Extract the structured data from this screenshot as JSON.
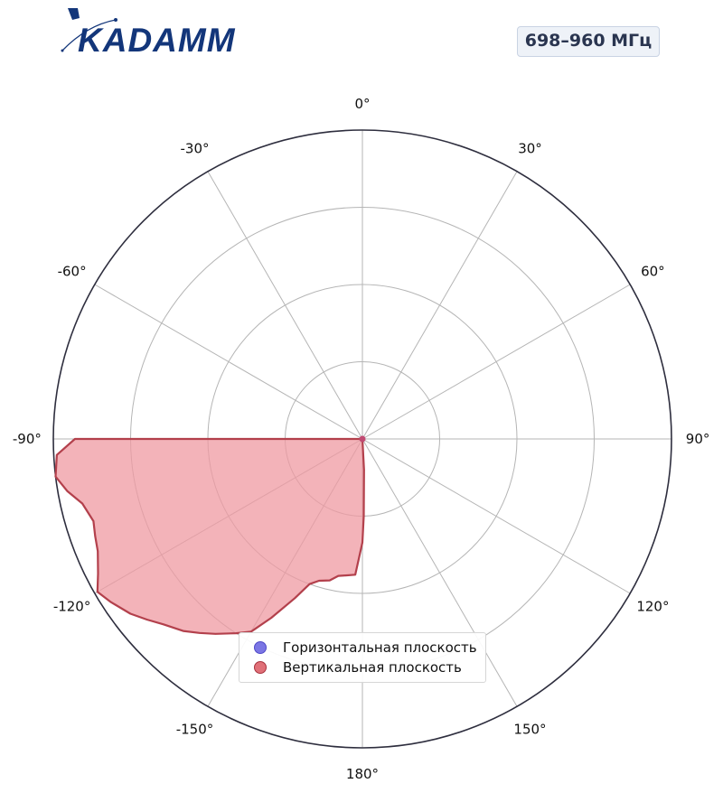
{
  "logo": {
    "text": "KADAMM",
    "color": "#13367a"
  },
  "band_label": "698–960 МГц",
  "chart_data": {
    "type": "polar",
    "angle_direction": "clockwise",
    "angle_zero": "top",
    "angle_ticks": [
      "0°",
      "30°",
      "60°",
      "90°",
      "120°",
      "150°",
      "180°",
      "-150°",
      "-120°",
      "-90°",
      "-60°",
      "-30°"
    ],
    "angle_tick_values": [
      0,
      30,
      60,
      90,
      120,
      150,
      180,
      -150,
      -120,
      -90,
      -60,
      -30
    ],
    "radial_max": 1.0,
    "radial_gridlines": [
      0.25,
      0.5,
      0.75
    ],
    "grid": true,
    "legend_position": "bottom-center",
    "series": [
      {
        "name": "Горизонтальная плоскость",
        "color": "#6f6ae0",
        "angles": [],
        "r": []
      },
      {
        "name": "Вертикальная плоскость",
        "color": "#b3404c",
        "fill": "#ef9aa2",
        "angles": [
          -90,
          -93,
          -97,
          -100,
          -103,
          -107,
          -110,
          -113,
          -117,
          -120,
          -123,
          -127,
          -130,
          -133,
          -137,
          -140,
          -143,
          -147,
          -150,
          -153,
          -157,
          -160,
          -163,
          -167,
          -170,
          -173,
          -177,
          180,
          179,
          177,
          175
        ],
        "r": [
          0.93,
          0.99,
          1.0,
          0.97,
          0.93,
          0.91,
          0.92,
          0.93,
          0.96,
          0.99,
          0.97,
          0.94,
          0.91,
          0.88,
          0.85,
          0.82,
          0.79,
          0.75,
          0.72,
          0.65,
          0.56,
          0.5,
          0.48,
          0.47,
          0.45,
          0.445,
          0.44,
          0.335,
          0.25,
          0.1,
          0.0
        ]
      }
    ]
  }
}
